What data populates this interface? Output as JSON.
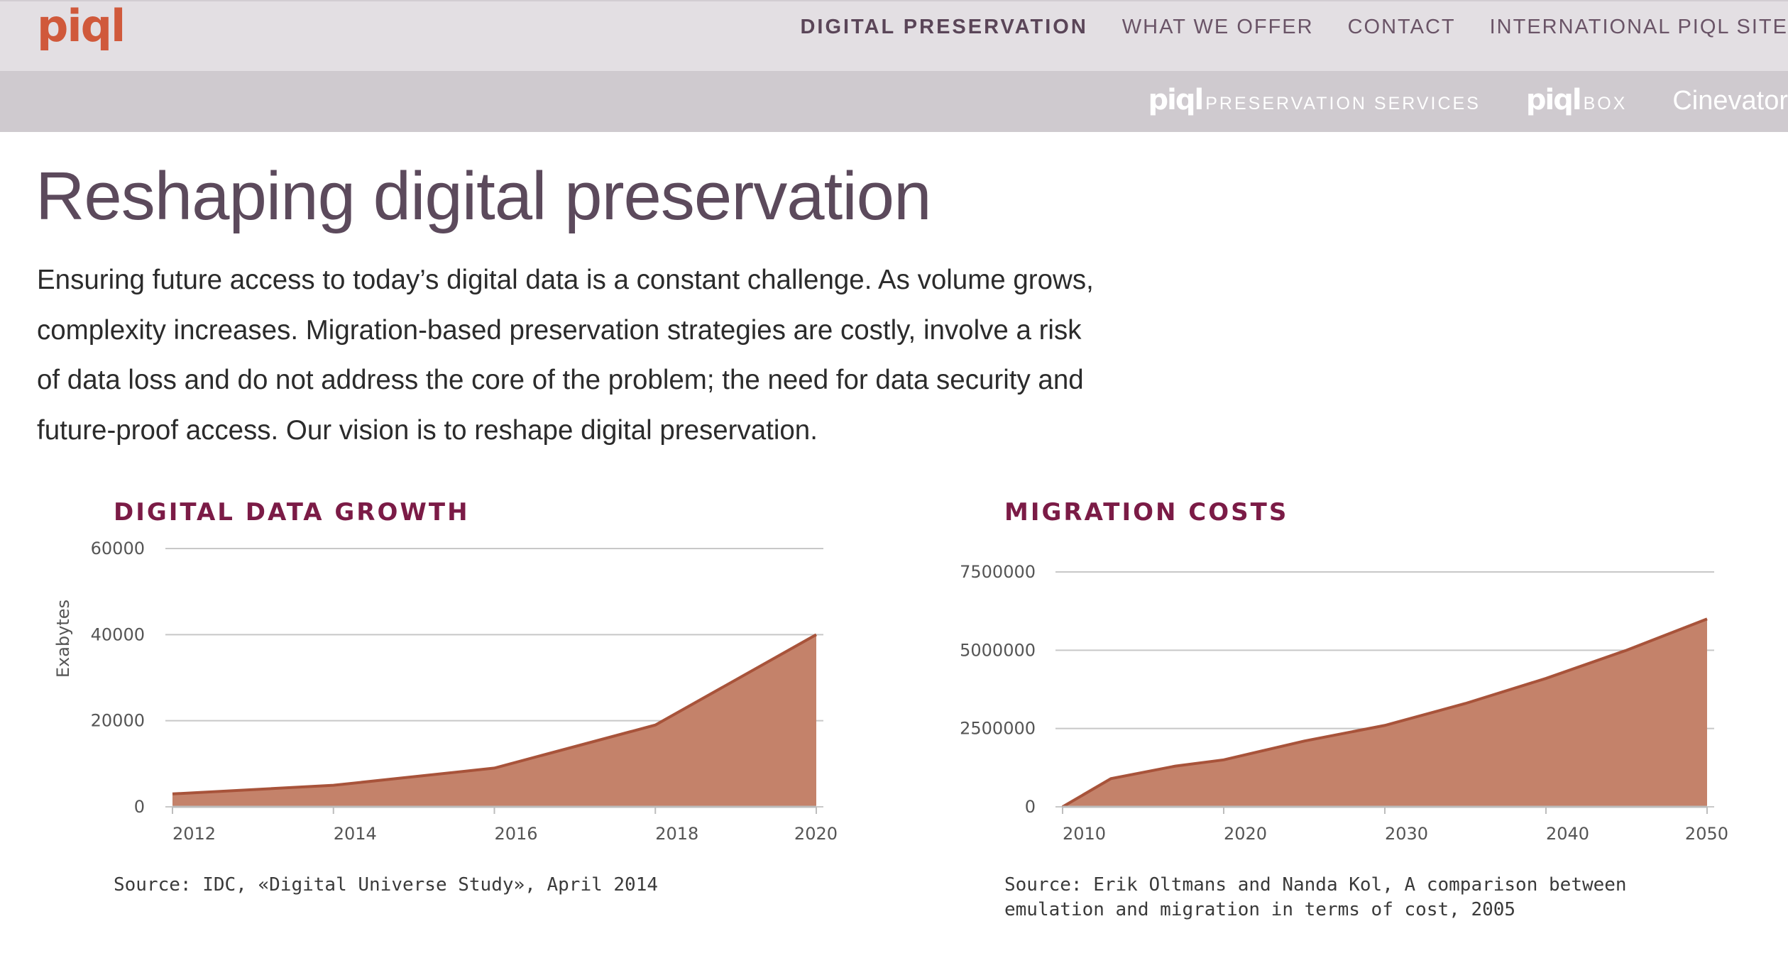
{
  "header": {
    "logo_text": "piql",
    "nav": [
      {
        "label": "DIGITAL PRESERVATION",
        "active": true
      },
      {
        "label": "WHAT WE OFFER",
        "active": false
      },
      {
        "label": "CONTACT",
        "active": false
      },
      {
        "label": "INTERNATIONAL PIQL SITE",
        "active": false
      }
    ]
  },
  "subnav": {
    "preservation": {
      "brand": "piql",
      "label": "PRESERVATION SERVICES"
    },
    "box": {
      "brand": "piql",
      "label": "BOX"
    },
    "cinevator": "Cinevator"
  },
  "main": {
    "title": "Reshaping digital preservation",
    "intro": "Ensuring future access to today’s digital data is a constant challenge. As volume grows, complexity increases. Migration-based preservation strategies are costly, involve a risk of data loss and do not address the core of the problem; the need for data security and future-proof access. Our vision is to reshape digital preservation."
  },
  "colors": {
    "accent": "#d0593b",
    "chart_fill": "#c4826a",
    "chart_line": "#a8533a",
    "chart_title": "#7b1b46",
    "heading": "#5c4a5c",
    "gridline": "#c8c8c8"
  },
  "chart_data": [
    {
      "type": "area",
      "title": "DIGITAL DATA GROWTH",
      "xlabel": "",
      "ylabel": "Exabytes",
      "x": [
        2012,
        2014,
        2016,
        2018,
        2020
      ],
      "series": [
        {
          "values": [
            3000,
            5000,
            9000,
            19000,
            40000
          ]
        }
      ],
      "x_ticks": [
        "2012",
        "2014",
        "2016",
        "2018",
        "2020"
      ],
      "y_ticks": [
        0,
        20000,
        40000,
        60000
      ],
      "ylim": [
        0,
        60000
      ],
      "xlim": [
        2012,
        2020
      ],
      "grid": true,
      "source": "Source: IDC, «Digital Universe Study», April 2014"
    },
    {
      "type": "area",
      "title": "MIGRATION COSTS",
      "xlabel": "",
      "ylabel": "",
      "x": [
        2010,
        2013,
        2017,
        2020,
        2025,
        2030,
        2035,
        2040,
        2045,
        2050
      ],
      "series": [
        {
          "values": [
            0,
            900000,
            1300000,
            1500000,
            2100000,
            2600000,
            3300000,
            4100000,
            5000000,
            6000000
          ]
        }
      ],
      "x_ticks": [
        "2010",
        "2020",
        "2030",
        "2040",
        "2050"
      ],
      "y_ticks": [
        0,
        2500000,
        5000000,
        7500000
      ],
      "ylim": [
        0,
        7500000
      ],
      "xlim": [
        2010,
        2050
      ],
      "grid": true,
      "source": "Source: Erik Oltmans and Nanda Kol, A comparison between emulation and migration in terms of cost, 2005"
    }
  ]
}
